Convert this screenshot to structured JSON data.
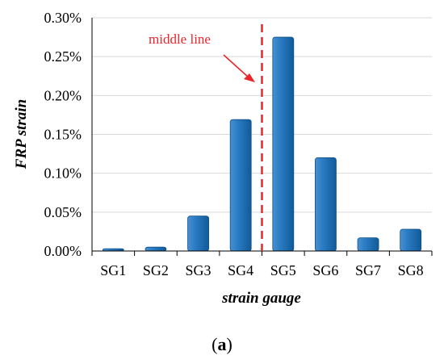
{
  "chart_data": {
    "type": "bar",
    "categories": [
      "SG1",
      "SG2",
      "SG3",
      "SG4",
      "SG5",
      "SG6",
      "SG7",
      "SG8"
    ],
    "values": [
      0.003,
      0.005,
      0.045,
      0.169,
      0.275,
      0.12,
      0.017,
      0.028
    ],
    "xlabel": "strain gauge",
    "ylabel": "FRP strain",
    "ylim": [
      0,
      0.3
    ],
    "yticks": [
      0,
      0.05,
      0.1,
      0.15,
      0.2,
      0.25,
      0.3
    ],
    "ytick_labels": [
      "0.00%",
      "0.05%",
      "0.10%",
      "0.15%",
      "0.20%",
      "0.25%",
      "0.30%"
    ],
    "grid": "horizontal",
    "legend": "none",
    "annotation": {
      "text": "middle line",
      "position_between": [
        "SG4",
        "SG5"
      ]
    },
    "colors": {
      "bar": "#1f6fb4",
      "annotation": "#e8262b",
      "grid": "#d9d9d9"
    }
  },
  "caption": {
    "open": "(",
    "label": "a",
    "close": ")"
  }
}
